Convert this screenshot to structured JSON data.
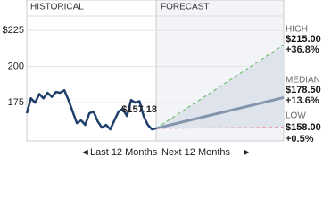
{
  "chart_data": {
    "type": "line",
    "headers": [
      "HISTORICAL",
      "FORECAST"
    ],
    "period_labels": [
      "Last 12 Months",
      "Next 12 Months"
    ],
    "color": "#1f3f6b",
    "values": [
      167.6,
      178,
      175,
      181,
      178,
      181.8,
      179,
      182.4,
      181.8,
      183.6,
      176.8,
      168.8,
      160.8,
      162.7,
      159.6,
      167.6,
      168.8,
      162,
      157.7,
      159.6,
      156.5,
      162.7,
      168.8,
      170.7,
      165.7,
      176.8,
      175,
      176,
      165.7,
      159.6,
      156.5,
      157.18
    ],
    "current_label": "$157.18",
    "ylim": [
      148.5,
      235
    ],
    "yticks": [
      {
        "value": 175,
        "label": "175"
      },
      {
        "value": 200,
        "label": "200"
      },
      {
        "value": 225,
        "label": "$225"
      }
    ],
    "grid": true,
    "forecast": [
      {
        "name": "HIGH",
        "value": 215,
        "value_label": "$215.00",
        "change": 36.8,
        "change_label": "+36.8%",
        "color": "#5cb85c",
        "change_color": "#1a9a1a",
        "dash": true
      },
      {
        "name": "MEDIAN",
        "value": 178.5,
        "value_label": "$178.50",
        "change": 13.6,
        "change_label": "+13.6%",
        "color": "#8394ad",
        "change_color": "#1a9a1a",
        "dash": false
      },
      {
        "name": "LOW",
        "value": 158,
        "value_label": "$158.00",
        "change": 0.5,
        "change_label": "+0.5%",
        "color": "#e8909a",
        "change_color": "#1a9a1a",
        "dash": true
      }
    ]
  }
}
